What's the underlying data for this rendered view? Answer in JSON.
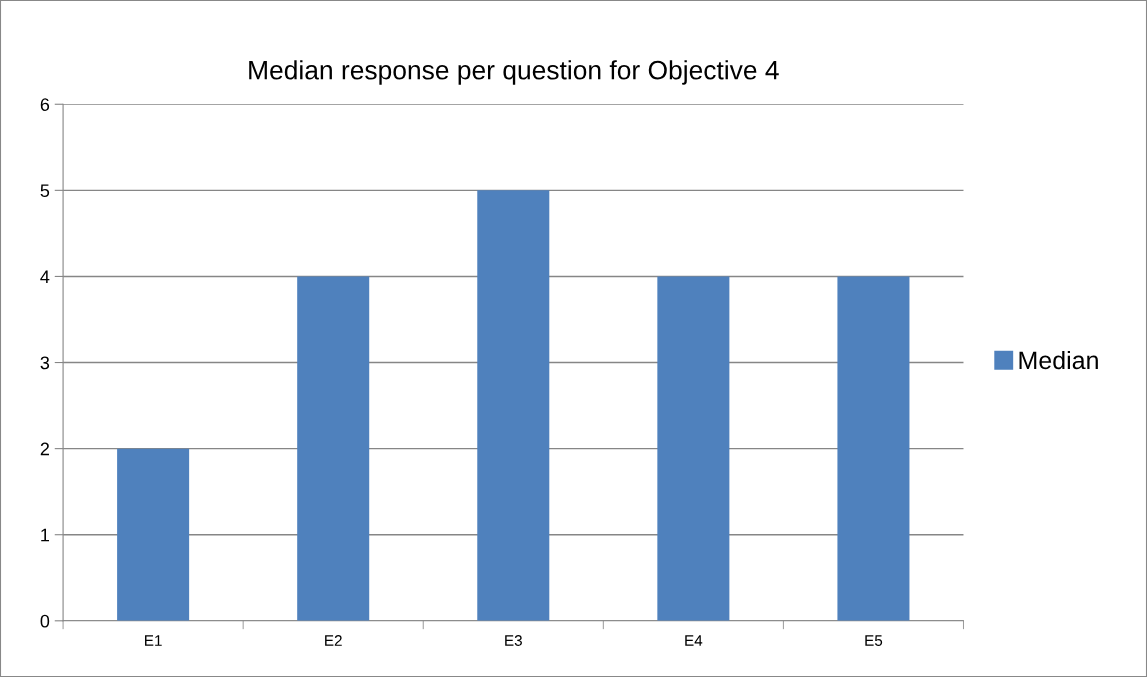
{
  "chart_data": {
    "type": "bar",
    "title": "Median response per question for Objective 4",
    "categories": [
      "E1",
      "E2",
      "E3",
      "E4",
      "E5"
    ],
    "series": [
      {
        "name": "Median",
        "color": "#4f81bd",
        "values": [
          2,
          4,
          5,
          4,
          4
        ]
      }
    ],
    "ylim": [
      0,
      6
    ],
    "yticks": [
      0,
      1,
      2,
      3,
      4,
      5,
      6
    ],
    "grid": "y",
    "legend": "right"
  }
}
